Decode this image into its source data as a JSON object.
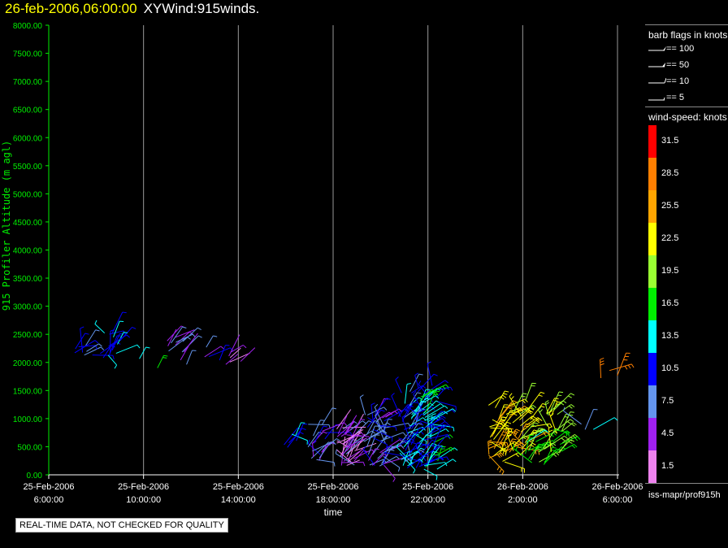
{
  "header": {
    "timestamp": "26-feb-2006,06:00:00",
    "product": "XYWind:915winds."
  },
  "quality_note": "REAL-TIME DATA, NOT CHECKED FOR QUALITY",
  "legend": {
    "flags_title": "barb flags in knots",
    "flags": [
      {
        "label": "== 100"
      },
      {
        "label": "== 50"
      },
      {
        "label": "== 10"
      },
      {
        "label": "== 5"
      }
    ],
    "speed_title": "wind-speed: knots",
    "source": "iss-mapr/prof915h"
  },
  "chart_data": {
    "type": "scatter",
    "title": "",
    "xlabel": "time",
    "ylabel": "915 Profiler Altitude (m agl)",
    "ylim": [
      0,
      8000
    ],
    "yticks": [
      "0.00",
      "500.00",
      "1000.00",
      "1500.00",
      "2000.00",
      "2500.00",
      "3000.00",
      "3500.00",
      "4000.00",
      "4500.00",
      "5000.00",
      "5500.00",
      "6000.00",
      "6500.00",
      "7000.00",
      "7500.00",
      "8000.00"
    ],
    "xlim_hours": [
      6,
      30
    ],
    "xticks": [
      {
        "h": 6,
        "date": "25-Feb-2006",
        "time": "6:00:00"
      },
      {
        "h": 10,
        "date": "25-Feb-2006",
        "time": "10:00:00"
      },
      {
        "h": 14,
        "date": "25-Feb-2006",
        "time": "14:00:00"
      },
      {
        "h": 18,
        "date": "25-Feb-2006",
        "time": "18:00:00"
      },
      {
        "h": 22,
        "date": "25-Feb-2006",
        "time": "22:00:00"
      },
      {
        "h": 26,
        "date": "26-Feb-2006",
        "time": "2:00:00"
      },
      {
        "h": 30,
        "date": "26-Feb-2006",
        "time": "6:00:00"
      }
    ],
    "colorbar": [
      {
        "label": "1.5",
        "color": "#ee82ee"
      },
      {
        "label": "4.5",
        "color": "#a020f0"
      },
      {
        "label": "7.5",
        "color": "#6495ed"
      },
      {
        "label": "10.5",
        "color": "#0000ff"
      },
      {
        "label": "13.5",
        "color": "#00ffff"
      },
      {
        "label": "16.5",
        "color": "#00ee00"
      },
      {
        "label": "19.5",
        "color": "#9aff32"
      },
      {
        "label": "22.5",
        "color": "#ffff00"
      },
      {
        "label": "25.5",
        "color": "#ffa500"
      },
      {
        "label": "28.5",
        "color": "#ff7f00"
      },
      {
        "label": "31.5",
        "color": "#ff0000"
      }
    ],
    "clusters": [
      {
        "h": 7.5,
        "alt": [
          2100,
          2500
        ],
        "speed": 9,
        "n": 8
      },
      {
        "h": 8.6,
        "alt": [
          2000,
          2600
        ],
        "speed": 12,
        "n": 14
      },
      {
        "h": 10.2,
        "alt": [
          1800,
          2100
        ],
        "speed": 15,
        "n": 2
      },
      {
        "h": 11.4,
        "alt": [
          1950,
          2550
        ],
        "speed": 6,
        "n": 12
      },
      {
        "h": 13.0,
        "alt": [
          2000,
          2300
        ],
        "speed": 8,
        "n": 4
      },
      {
        "h": 13.8,
        "alt": [
          1900,
          2200
        ],
        "speed": 3,
        "n": 6
      },
      {
        "h": 16.3,
        "alt": [
          400,
          750
        ],
        "speed": 12,
        "n": 6
      },
      {
        "h": 17.3,
        "alt": [
          250,
          1000
        ],
        "speed": 8,
        "n": 18
      },
      {
        "h": 18.6,
        "alt": [
          150,
          850
        ],
        "speed": 4,
        "n": 45
      },
      {
        "h": 19.8,
        "alt": [
          150,
          1100
        ],
        "speed": 8,
        "n": 45
      },
      {
        "h": 21.2,
        "alt": [
          120,
          1500
        ],
        "speed": 11,
        "n": 55
      },
      {
        "h": 22.0,
        "alt": [
          100,
          1650
        ],
        "speed": 13,
        "n": 55
      },
      {
        "h": 25.0,
        "alt": [
          180,
          1250
        ],
        "speed": 24,
        "n": 35
      },
      {
        "h": 25.9,
        "alt": [
          300,
          1350
        ],
        "speed": 22,
        "n": 25
      },
      {
        "h": 26.5,
        "alt": [
          180,
          600
        ],
        "speed": 17,
        "n": 16
      },
      {
        "h": 27.3,
        "alt": [
          250,
          1200
        ],
        "speed": 20,
        "n": 22
      },
      {
        "h": 28.7,
        "alt": [
          650,
          950
        ],
        "speed": 10,
        "n": 3
      },
      {
        "h": 29.7,
        "alt": [
          1700,
          1950
        ],
        "speed": 27,
        "n": 3
      }
    ]
  }
}
